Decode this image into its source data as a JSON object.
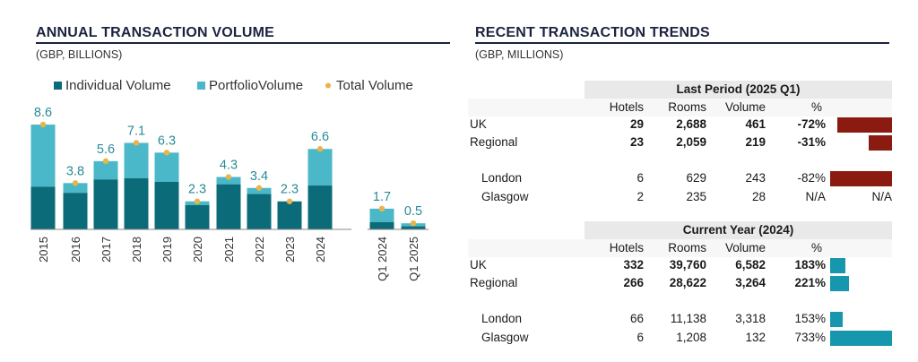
{
  "left": {
    "title": "ANNUAL TRANSACTION VOLUME",
    "unit": "(GBP, BILLIONS)"
  },
  "right": {
    "title": "RECENT TRANSACTION TRENDS",
    "unit": "(GBP, MILLIONS)"
  },
  "colors": {
    "individual": "#0c6b78",
    "portfolio": "#4ab8c8",
    "total_marker": "#e8b54a",
    "negative_bar": "#8b1a10",
    "positive_bar": "#1697ad",
    "label_teal": "#2a8a98"
  },
  "chart_data": {
    "type": "bar",
    "stacked": true,
    "categories": [
      "2015",
      "2016",
      "2017",
      "2018",
      "2019",
      "2020",
      "2021",
      "2022",
      "2023",
      "2024",
      "Q1 2024",
      "Q1 2025"
    ],
    "series": [
      {
        "name": "Individual Volume",
        "values": [
          3.5,
          3.0,
          4.1,
          4.2,
          3.9,
          2.0,
          3.7,
          2.9,
          2.5,
          3.6,
          0.6,
          0.25
        ]
      },
      {
        "name": "PortfolioVolume",
        "values": [
          5.1,
          0.8,
          1.5,
          2.9,
          2.4,
          0.3,
          0.6,
          0.5,
          -0.2,
          3.0,
          1.1,
          0.25
        ]
      }
    ],
    "totals": [
      8.6,
      3.8,
      5.6,
      7.1,
      6.3,
      2.3,
      4.3,
      3.4,
      2.3,
      6.6,
      1.7,
      0.5
    ],
    "total_labels": [
      "8.6",
      "3.8",
      "5.6",
      "7.1",
      "6.3",
      "2.3",
      "4.3",
      "3.4",
      "2.3",
      "6.6",
      "1.7",
      "0.5"
    ],
    "total_series_name": "Total Volume",
    "ylim": [
      0,
      9
    ]
  },
  "table": {
    "last_period": {
      "title": "Last Period (2025 Q1)",
      "headers": [
        "Hotels",
        "Rooms",
        "Volume",
        "%"
      ],
      "rows": [
        {
          "name": "UK",
          "hotels": "29",
          "rooms": "2,688",
          "volume": "461",
          "pct": "-72%",
          "pct_value": -72,
          "bold": true,
          "indent": false
        },
        {
          "name": "Regional",
          "hotels": "23",
          "rooms": "2,059",
          "volume": "219",
          "pct": "-31%",
          "pct_value": -31,
          "bold": true,
          "indent": false
        },
        {
          "name": "London",
          "hotels": "6",
          "rooms": "629",
          "volume": "243",
          "pct": "-82%",
          "pct_value": -82,
          "bold": false,
          "indent": true
        },
        {
          "name": "Glasgow",
          "hotels": "2",
          "rooms": "235",
          "volume": "28",
          "pct": "N/A",
          "pct_value": null,
          "bar_text": "N/A",
          "bold": false,
          "indent": true
        }
      ]
    },
    "current_year": {
      "title": "Current Year (2024)",
      "headers": [
        "Hotels",
        "Rooms",
        "Volume",
        "%"
      ],
      "rows": [
        {
          "name": "UK",
          "hotels": "332",
          "rooms": "39,760",
          "volume": "6,582",
          "pct": "183%",
          "pct_value": 183,
          "bold": true,
          "indent": false
        },
        {
          "name": "Regional",
          "hotels": "266",
          "rooms": "28,622",
          "volume": "3,264",
          "pct": "221%",
          "pct_value": 221,
          "bold": true,
          "indent": false
        },
        {
          "name": "London",
          "hotels": "66",
          "rooms": "11,138",
          "volume": "3,318",
          "pct": "153%",
          "pct_value": 153,
          "bold": false,
          "indent": true
        },
        {
          "name": "Glasgow",
          "hotels": "6",
          "rooms": "1,208",
          "volume": "132",
          "pct": "733%",
          "pct_value": 733,
          "bold": false,
          "indent": true
        }
      ]
    }
  }
}
